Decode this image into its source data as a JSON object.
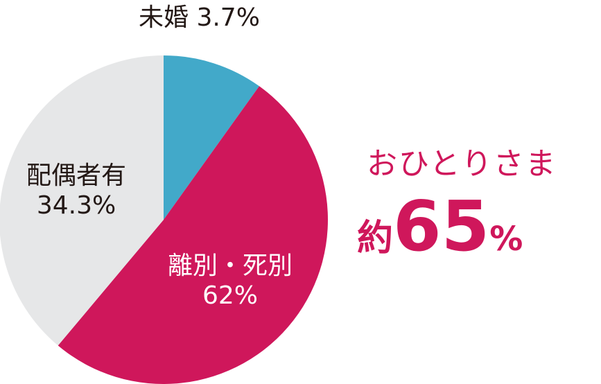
{
  "chart_data": {
    "type": "pie",
    "slices": [
      {
        "label": "未婚",
        "value": 3.7,
        "display": "3.7%",
        "color": "#42a9c9"
      },
      {
        "label": "離別・死別",
        "value": 62,
        "display": "62%",
        "color": "#cf175b"
      },
      {
        "label": "配偶者有",
        "value": 34.3,
        "display": "34.3%",
        "color": "#e6e7e8"
      }
    ]
  },
  "labels": {
    "mikon": "未婚 3.7%",
    "haigu_name": "配偶者有",
    "haigu_value": "34.3%",
    "rikon_name": "離別・死別",
    "rikon_value": "62%"
  },
  "callout": {
    "title": "おひとりさま",
    "prefix": "約",
    "number": "65",
    "unit": "%",
    "color": "#cf175b"
  }
}
